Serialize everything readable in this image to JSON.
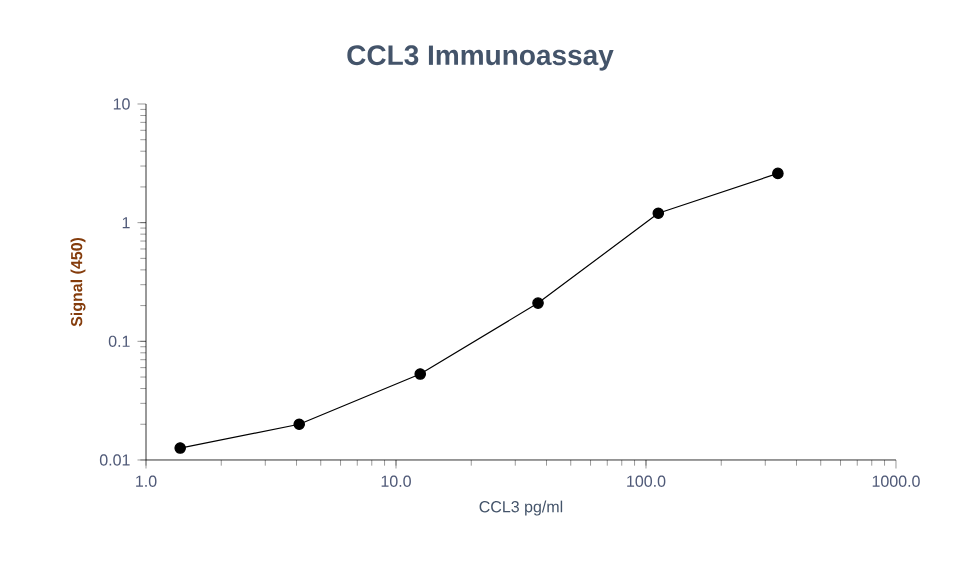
{
  "chart_data": {
    "type": "line",
    "title": "CCL3 Immunoassay",
    "xlabel": "CCL3 pg/ml",
    "ylabel": "Signal (450)",
    "x": [
      1.37,
      4.1,
      12.5,
      37,
      112,
      337
    ],
    "series": [
      {
        "color": "#000000",
        "values": [
          0.0126,
          0.02,
          0.053,
          0.21,
          1.2,
          2.6
        ]
      }
    ],
    "log": "xy",
    "marker": "circle",
    "line_style": "solid",
    "grid": false,
    "xlim": [
      1,
      1000
    ],
    "ylim": [
      0.01,
      10
    ],
    "xticks": [
      {
        "value": 1,
        "label": "1.0"
      },
      {
        "value": 10,
        "label": "10.0"
      },
      {
        "value": 100,
        "label": "100.0"
      },
      {
        "value": 1000,
        "label": "1000.0"
      }
    ],
    "yticks": [
      0.01,
      0.1,
      1,
      10
    ]
  }
}
